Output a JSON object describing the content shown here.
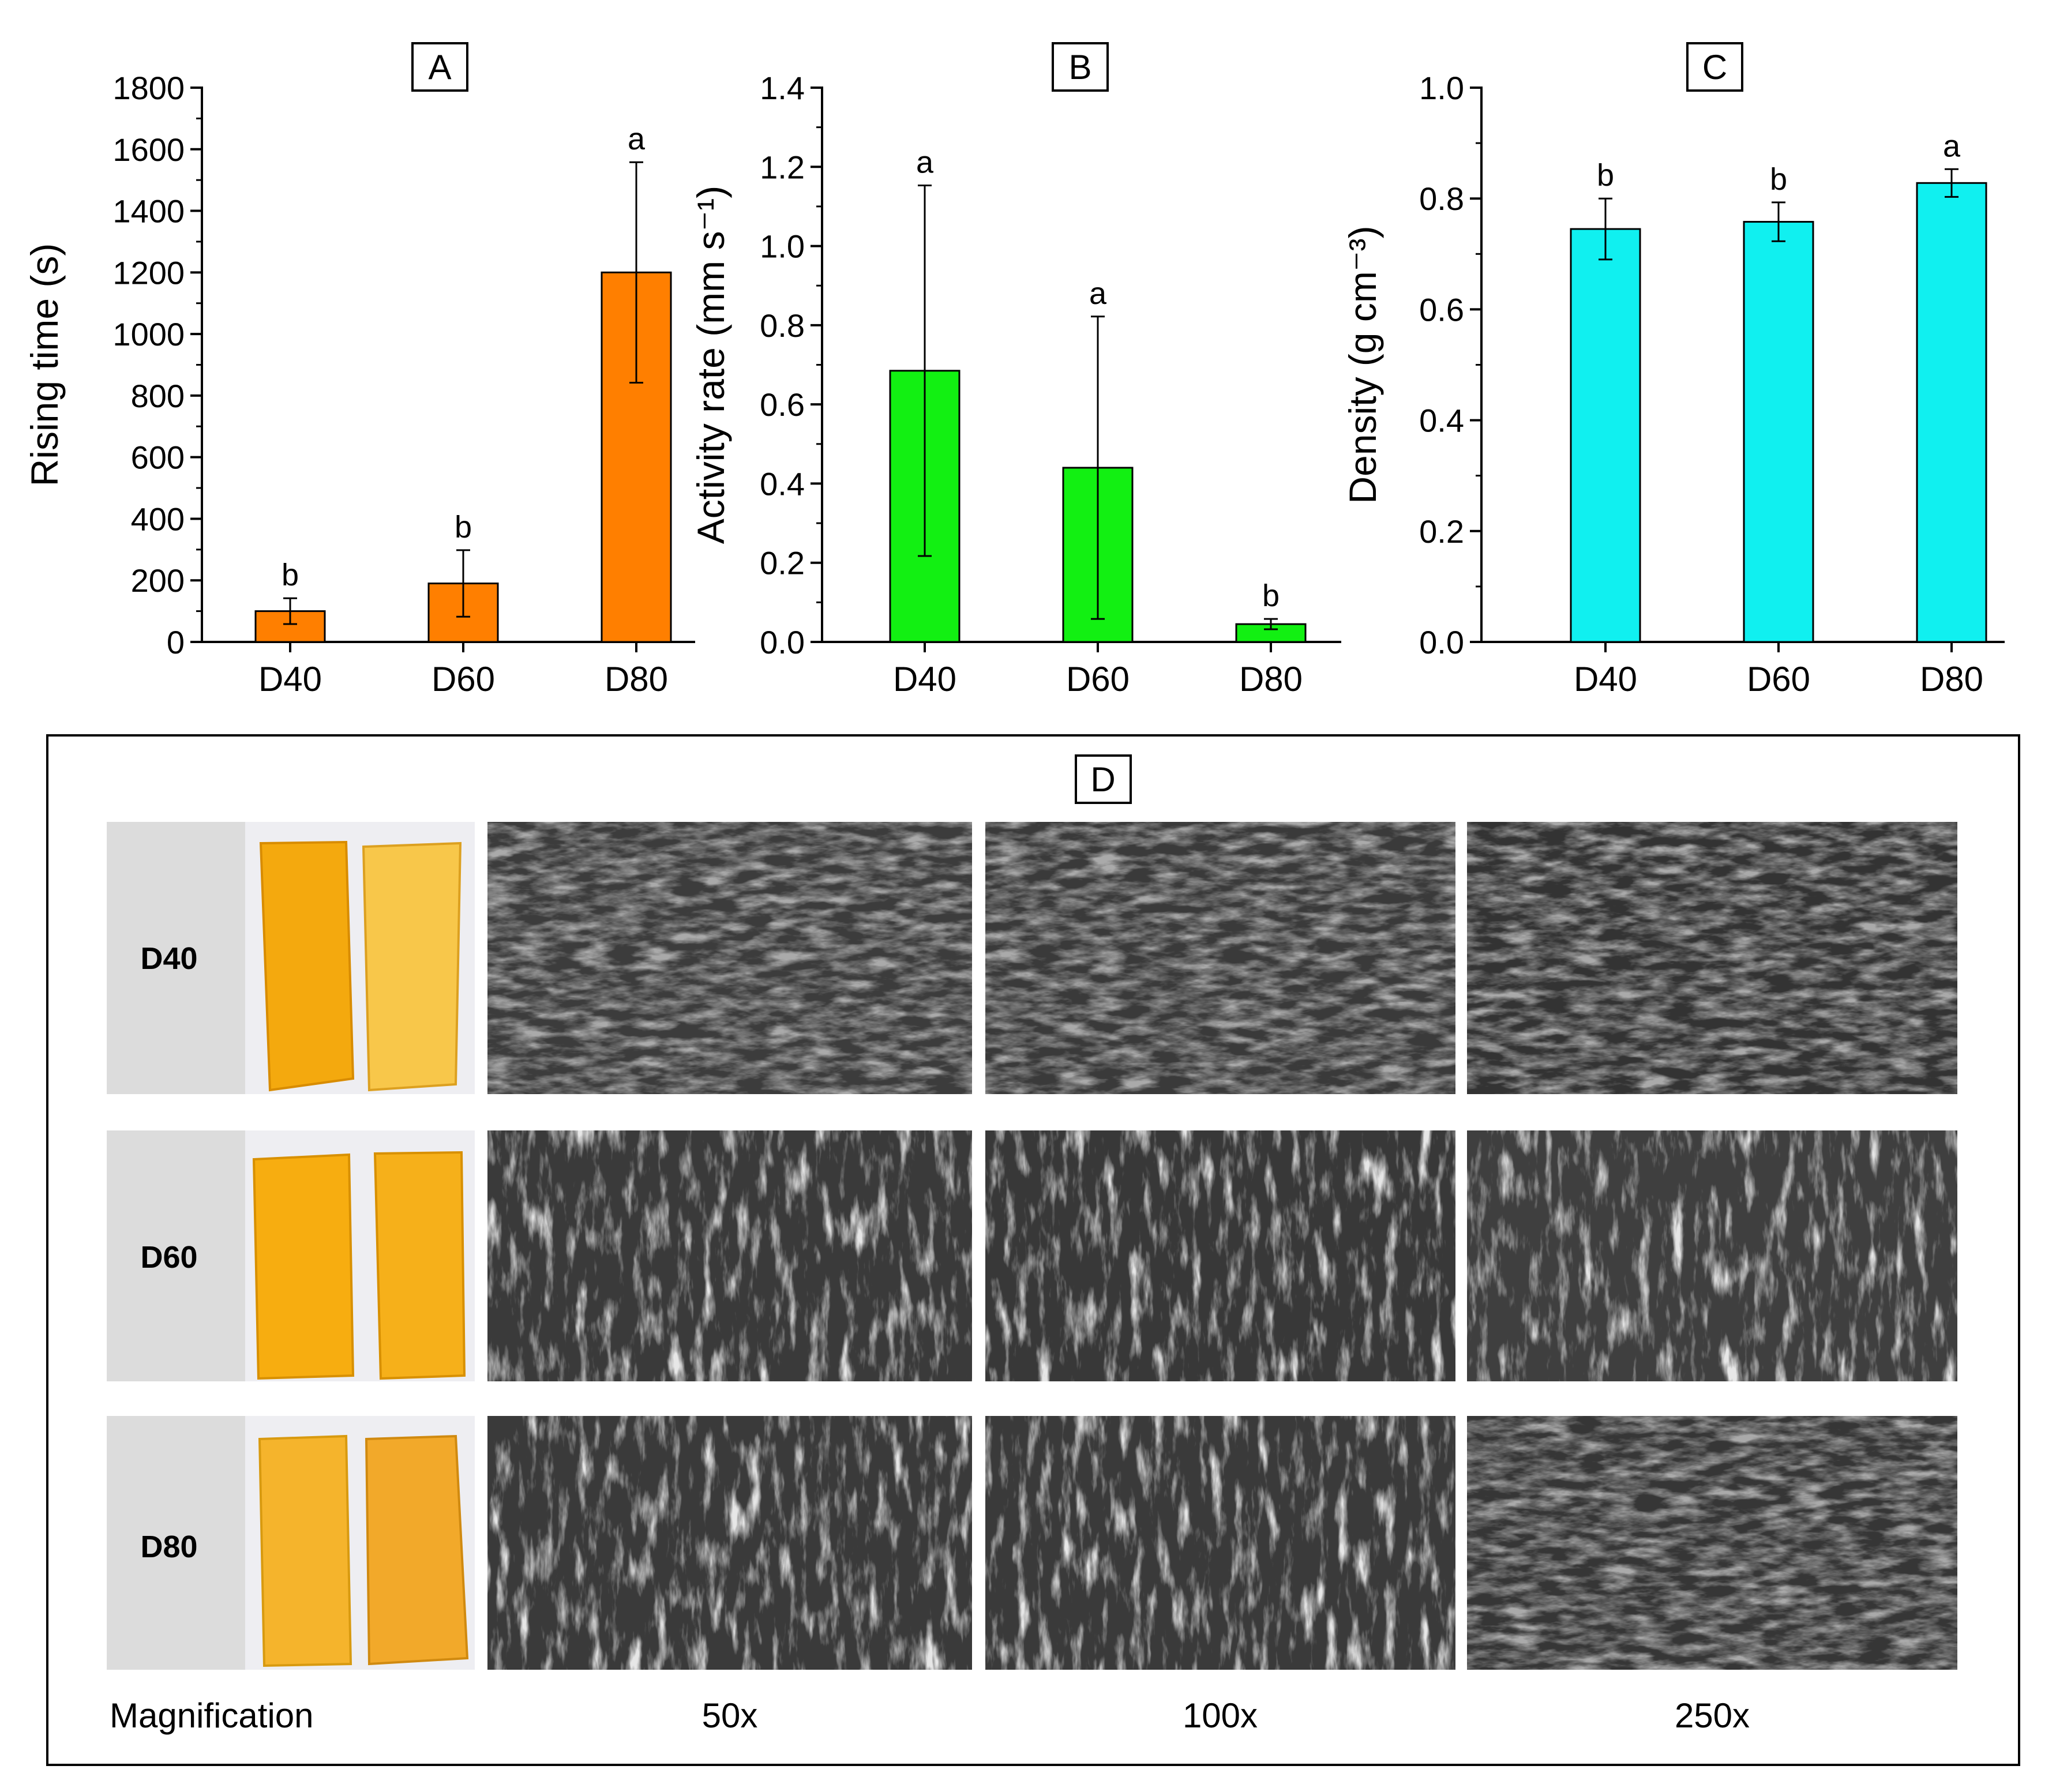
{
  "chart_data": [
    {
      "panel": "A",
      "type": "bar",
      "categories": [
        "D40",
        "D60",
        "D80"
      ],
      "values": [
        100,
        190,
        1200
      ],
      "errors": [
        42,
        108,
        358
      ],
      "letters": [
        "b",
        "b",
        "a"
      ],
      "ylabel": "Rising time (s)",
      "ylim": [
        0,
        1800
      ],
      "ticks": [
        "0",
        "200",
        "400",
        "600",
        "800",
        "1000",
        "1200",
        "1400",
        "1600",
        "1800"
      ],
      "color": "#ff7f00"
    },
    {
      "panel": "B",
      "type": "bar",
      "categories": [
        "D40",
        "D60",
        "D80"
      ],
      "values": [
        0.685,
        0.44,
        0.045
      ],
      "errors": [
        0.468,
        0.382,
        0.013
      ],
      "letters": [
        "a",
        "a",
        "b"
      ],
      "ylabel": "Activity rate (mm s⁻¹)",
      "ylim": [
        0,
        1.4
      ],
      "ticks": [
        "0.0",
        "0.2",
        "0.4",
        "0.6",
        "0.8",
        "1.0",
        "1.2",
        "1.4"
      ],
      "color": "#12f012"
    },
    {
      "panel": "C",
      "type": "bar",
      "categories": [
        "D40",
        "D60",
        "D80"
      ],
      "values": [
        0.745,
        0.758,
        0.828
      ],
      "errors": [
        0.055,
        0.035,
        0.025
      ],
      "letters": [
        "b",
        "b",
        "a"
      ],
      "ylabel": "Density (g cm⁻³)",
      "ylim": [
        0,
        1.0
      ],
      "ticks": [
        "0.0",
        "0.2",
        "0.4",
        "0.6",
        "0.8",
        "1.0"
      ],
      "color": "#10f0f0"
    }
  ],
  "panel_d": {
    "label": "D",
    "rows": [
      "D40",
      "D60",
      "D80"
    ],
    "magnification_label": "Magnification",
    "magnifications": [
      "50x",
      "100x",
      "250x"
    ],
    "photo_color": "#f4a90e"
  }
}
